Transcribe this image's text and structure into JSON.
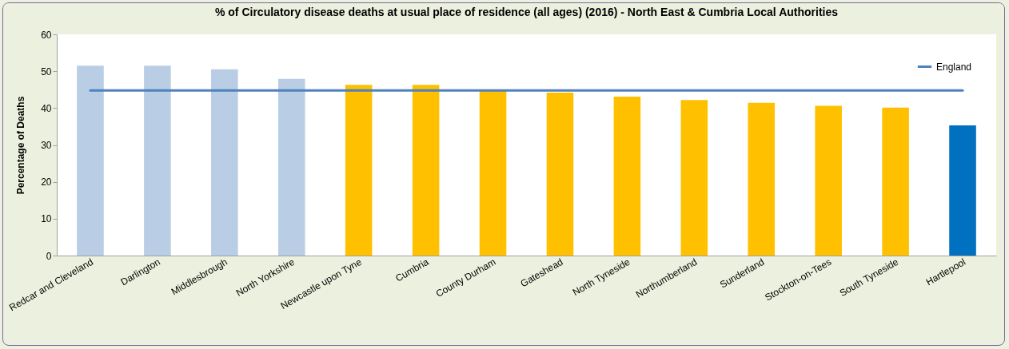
{
  "chart_data": {
    "type": "bar",
    "title": "% of Circulatory disease deaths at usual place of residence (all ages) (2016) - North East & Cumbria Local Authorities",
    "ylabel": "Percentage of Deaths",
    "categories": [
      "Redcar and Cleveland",
      "Darlington",
      "Middlesbrough",
      "North Yorkshire",
      "Newcastle upon Tyne",
      "Cumbria",
      "County Durham",
      "Gateshead",
      "North Tyneside",
      "Northumberland",
      "Sunderland",
      "Stockton-on-Tees",
      "South Tyneside",
      "Hartlepool"
    ],
    "series": [
      {
        "values": [
          51.5,
          51.5,
          50.5,
          47.9,
          46.3,
          46.3,
          44.8,
          44.2,
          43.1,
          42.2,
          41.4,
          40.6,
          40.1,
          35.3
        ],
        "colors": [
          "#b9cde5",
          "#b9cde5",
          "#b9cde5",
          "#b9cde5",
          "#ffc000",
          "#ffc000",
          "#ffc000",
          "#ffc000",
          "#ffc000",
          "#ffc000",
          "#ffc000",
          "#ffc000",
          "#ffc000",
          "#0070c0"
        ]
      },
      {
        "type": "line",
        "name": "England",
        "color": "#4f81bd",
        "values": [
          44.8,
          44.8,
          44.8,
          44.8,
          44.8,
          44.8,
          44.8,
          44.8,
          44.8,
          44.8,
          44.8,
          44.8,
          44.8,
          44.8
        ]
      }
    ],
    "ylim": [
      0,
      60
    ],
    "yticks": [
      0,
      10,
      20,
      30,
      40,
      50,
      60
    ],
    "grid": false,
    "legend": "top right"
  }
}
